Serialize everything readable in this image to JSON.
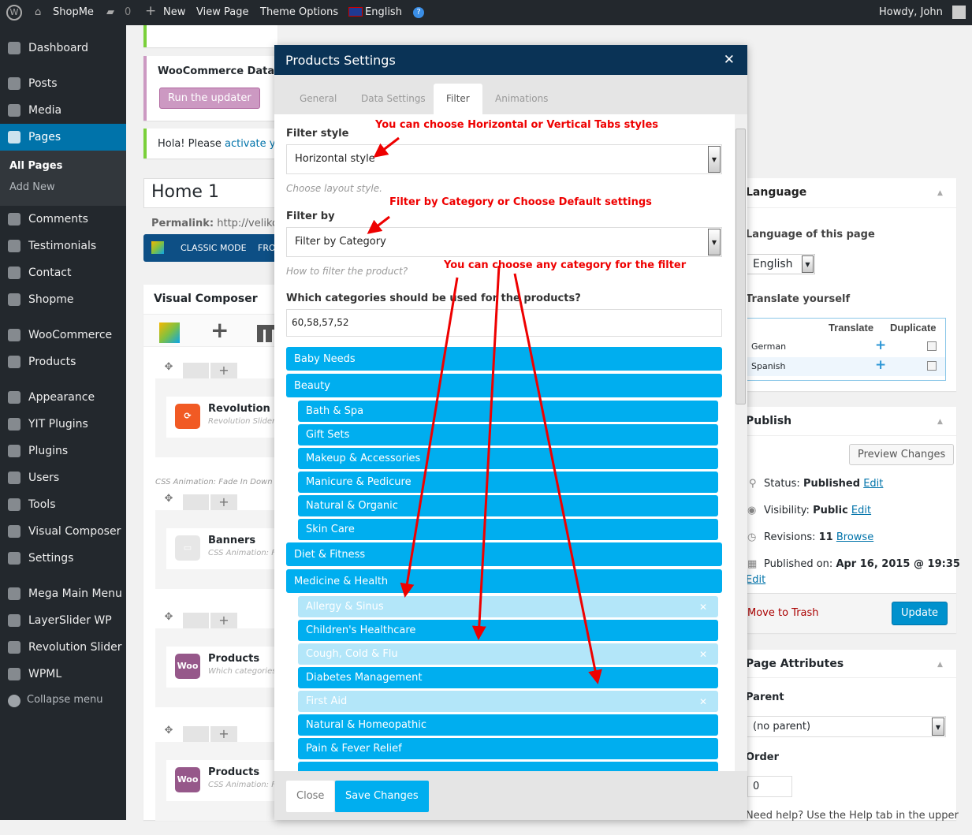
{
  "topbar": {
    "site": "ShopMe",
    "comments": "0",
    "new": "New",
    "view_page": "View Page",
    "theme_options": "Theme Options",
    "language": "English",
    "howdy": "Howdy, John"
  },
  "sidebar": {
    "items": [
      "Dashboard",
      "Posts",
      "Media",
      "Pages",
      "Comments",
      "Testimonials",
      "Contact",
      "Shopme",
      "WooCommerce",
      "Products",
      "Appearance",
      "YIT Plugins",
      "Plugins",
      "Users",
      "Tools",
      "Visual Composer",
      "Settings",
      "Mega Main Menu",
      "LayerSlider WP",
      "Revolution Slider",
      "WPML"
    ],
    "sub": [
      "All Pages",
      "Add New"
    ],
    "collapse": "Collapse menu",
    "active": "Pages"
  },
  "notices": {
    "woo_title": "WooCommerce Data Up",
    "run_updater": "Run the updater",
    "hola": "Hola! Please ",
    "activate": "activate you"
  },
  "editor": {
    "title": "Home 1",
    "permalink_label": "Permalink:",
    "permalink": "http://velikorc",
    "classic_mode": "CLASSIC MODE",
    "frontend": "FRO"
  },
  "vc": {
    "title": "Visual Composer",
    "elements": [
      {
        "name": "Revolution Sl",
        "desc": "Revolution Slider:",
        "icon": "revolution-slider"
      },
      {
        "name": "Banners",
        "desc": "CSS Animation: Fa",
        "icon": "banners"
      },
      {
        "name": "Products",
        "desc": "Which categories",
        "icon": "woo"
      },
      {
        "name": "Products",
        "desc": "CSS Animation: Fa",
        "icon": "woo"
      }
    ],
    "row_note": "CSS Animation: Fade In Down",
    "woo_label": "Woo"
  },
  "modal": {
    "title": "Products Settings",
    "tabs": [
      "General",
      "Data Settings",
      "Filter",
      "Animations"
    ],
    "active_tab": "Filter",
    "filter_style_label": "Filter style",
    "filter_style_value": "Horizontal style",
    "filter_style_hint": "Choose layout style.",
    "filter_by_label": "Filter by",
    "filter_by_value": "Filter by Category",
    "filter_by_hint": "How to filter the product?",
    "categories_label": "Which categories should be used for the products?",
    "categories_value": "60,58,57,52",
    "annotations": [
      "You can choose Horizontal or Vertical Tabs styles",
      "Filter by Category or Choose Default settings",
      "You can choose any category for the filter"
    ],
    "categories": [
      {
        "label": "Baby Needs",
        "level": 0,
        "selected": true
      },
      {
        "label": "Beauty",
        "level": 0,
        "selected": true
      },
      {
        "label": "Bath & Spa",
        "level": 1,
        "selected": true
      },
      {
        "label": "Gift Sets",
        "level": 1,
        "selected": true
      },
      {
        "label": "Makeup & Accessories",
        "level": 1,
        "selected": true
      },
      {
        "label": "Manicure & Pedicure",
        "level": 1,
        "selected": true
      },
      {
        "label": "Natural & Organic",
        "level": 1,
        "selected": true
      },
      {
        "label": "Skin Care",
        "level": 1,
        "selected": true
      },
      {
        "label": "Diet & Fitness",
        "level": 0,
        "selected": true
      },
      {
        "label": "Medicine & Health",
        "level": 0,
        "selected": true
      },
      {
        "label": "Allergy & Sinus",
        "level": 1,
        "selected": false
      },
      {
        "label": "Children's Healthcare",
        "level": 1,
        "selected": true
      },
      {
        "label": "Cough, Cold & Flu",
        "level": 1,
        "selected": false
      },
      {
        "label": "Diabetes Management",
        "level": 1,
        "selected": true
      },
      {
        "label": "First Aid",
        "level": 1,
        "selected": false
      },
      {
        "label": "Natural & Homeopathic",
        "level": 1,
        "selected": true
      },
      {
        "label": "Pain & Fever Relief",
        "level": 1,
        "selected": true
      },
      {
        "label": "",
        "level": 1,
        "selected": true
      }
    ],
    "remove_glyph": "✕",
    "close": "Close",
    "save": "Save Changes"
  },
  "language_box": {
    "title": "Language",
    "page_lang_label": "Language of this page",
    "lang_value": "English",
    "translate_label": "Translate yourself",
    "col_translate": "Translate",
    "col_duplicate": "Duplicate",
    "rows": [
      "German",
      "Spanish"
    ]
  },
  "publish": {
    "title": "Publish",
    "preview": "Preview Changes",
    "status_label": "Status: ",
    "status": "Published",
    "visibility_label": "Visibility: ",
    "visibility": "Public",
    "revisions_label": "Revisions: ",
    "revisions": "11",
    "browse": "Browse",
    "published_label": "Published on: ",
    "published": "Apr 16, 2015 @ 19:35",
    "edit": "Edit",
    "trash": "Move to Trash",
    "update": "Update"
  },
  "attributes": {
    "title": "Page Attributes",
    "parent_label": "Parent",
    "parent_value": "(no parent)",
    "order_label": "Order",
    "order_value": "0",
    "help": "Need help? Use the Help tab in the upper"
  },
  "colors": {
    "accent": "#00aeef",
    "admin_bar": "#23282d",
    "modal_header": "#0a3356",
    "annotation": "#ee0000"
  }
}
